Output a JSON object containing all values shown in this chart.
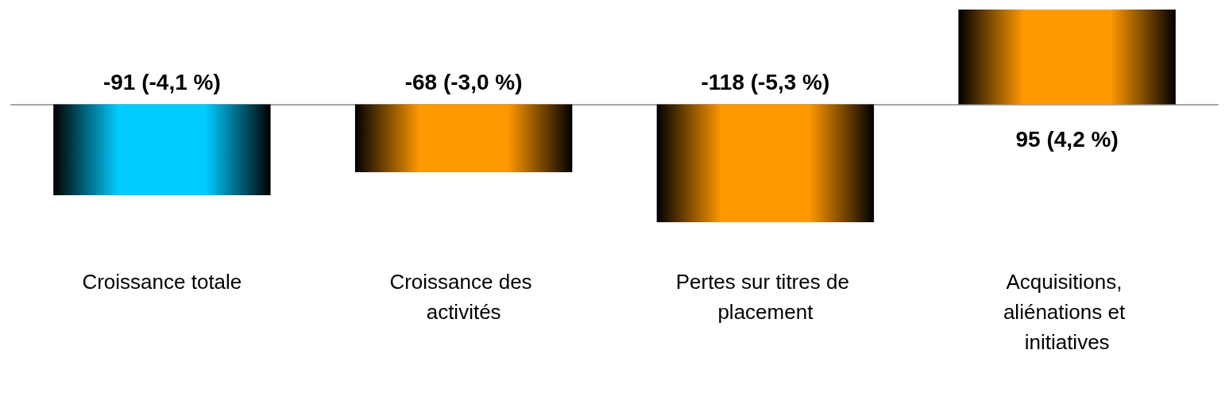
{
  "chart_data": {
    "type": "bar",
    "categories": [
      "Croissance totale",
      "Croissance des activités",
      "Pertes sur titres de placement",
      "Acquisitions, aliénations et initiatives"
    ],
    "values": [
      -91,
      -68,
      -118,
      95
    ],
    "colors": [
      "#00ccff",
      "#ff9900",
      "#ff9900",
      "#ff9900"
    ],
    "value_labels": [
      "-91 (-4,1 %)",
      "-68 (-3,0 %)",
      "-118 (-5,3 %)",
      "95 (4,2 %)"
    ],
    "grid": false
  }
}
